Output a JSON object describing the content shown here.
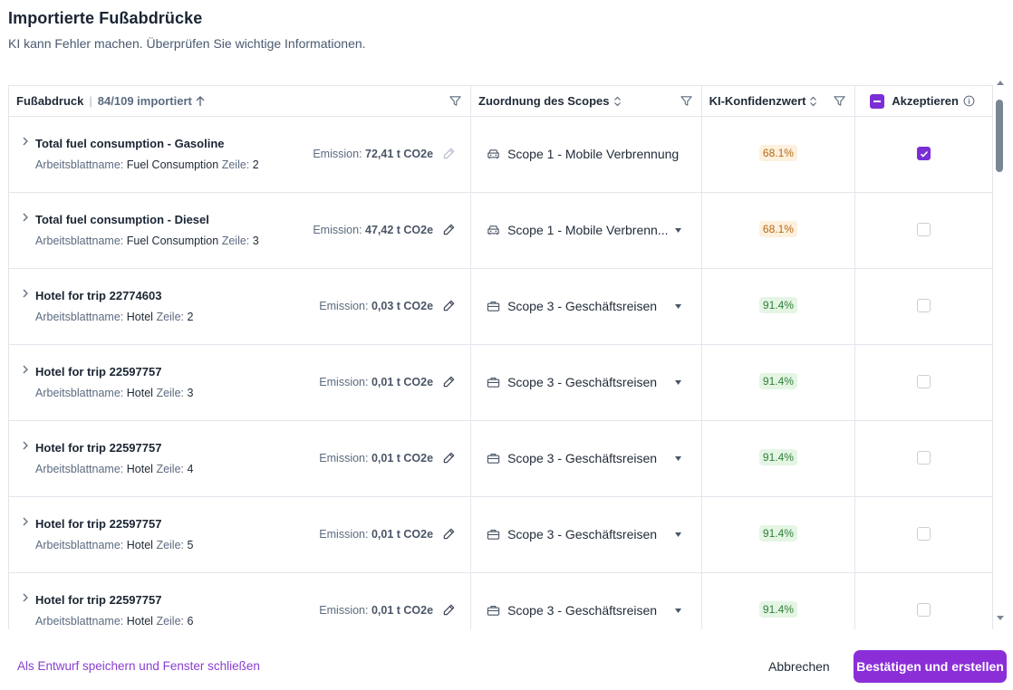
{
  "dialog": {
    "title": "Importierte Fußabdrücke",
    "subtitle": "KI kann Fehler machen. Überprüfen Sie wichtige Informationen."
  },
  "table": {
    "headers": {
      "footprint": "Fußabdruck",
      "imported_count": "84/109 importiert",
      "scope": "Zuordnung des Scopes",
      "confidence": "KI-Konfidenzwert",
      "accept": "Akzeptieren"
    },
    "labels": {
      "worksheet": "Arbeitsblattname:",
      "row": "Zeile:",
      "emission": "Emission:"
    },
    "rows": [
      {
        "name": "Total fuel consumption - Gasoline",
        "sheet": "Fuel Consumption",
        "line": "2",
        "emission": "72,41 t CO2e",
        "scope": "Scope 1 - Mobile Verbrennung",
        "scope_icon": "car-icon",
        "confidence": "68.1%",
        "confidence_level": "orange",
        "accepted": true
      },
      {
        "name": "Total fuel consumption - Diesel",
        "sheet": "Fuel Consumption",
        "line": "3",
        "emission": "47,42 t CO2e",
        "scope": "Scope 1 - Mobile Verbrenn...",
        "scope_icon": "car-icon",
        "confidence": "68.1%",
        "confidence_level": "orange",
        "accepted": false
      },
      {
        "name": "Hotel for trip 22774603",
        "sheet": "Hotel",
        "line": "2",
        "emission": "0,03 t CO2e",
        "scope": "Scope 3 - Geschäftsreisen",
        "scope_icon": "suitcase-icon",
        "confidence": "91.4%",
        "confidence_level": "green",
        "accepted": false
      },
      {
        "name": "Hotel for trip 22597757",
        "sheet": "Hotel",
        "line": "3",
        "emission": "0,01 t CO2e",
        "scope": "Scope 3 - Geschäftsreisen",
        "scope_icon": "suitcase-icon",
        "confidence": "91.4%",
        "confidence_level": "green",
        "accepted": false
      },
      {
        "name": "Hotel for trip 22597757",
        "sheet": "Hotel",
        "line": "4",
        "emission": "0,01 t CO2e",
        "scope": "Scope 3 - Geschäftsreisen",
        "scope_icon": "suitcase-icon",
        "confidence": "91.4%",
        "confidence_level": "green",
        "accepted": false
      },
      {
        "name": "Hotel for trip 22597757",
        "sheet": "Hotel",
        "line": "5",
        "emission": "0,01 t CO2e",
        "scope": "Scope 3 - Geschäftsreisen",
        "scope_icon": "suitcase-icon",
        "confidence": "91.4%",
        "confidence_level": "green",
        "accepted": false
      },
      {
        "name": "Hotel for trip 22597757",
        "sheet": "Hotel",
        "line": "6",
        "emission": "0,01 t CO2e",
        "scope": "Scope 3 - Geschäftsreisen",
        "scope_icon": "suitcase-icon",
        "confidence": "91.4%",
        "confidence_level": "green",
        "accepted": false
      }
    ]
  },
  "footer": {
    "draft_link": "Als Entwurf speichern und Fenster schließen",
    "cancel": "Abbrechen",
    "confirm": "Bestätigen und erstellen"
  },
  "colors": {
    "accent": "#8b2ed8",
    "border": "#e2e6ec",
    "badge_orange_bg": "#fdf0dd",
    "badge_green_bg": "#e4f5e4"
  }
}
